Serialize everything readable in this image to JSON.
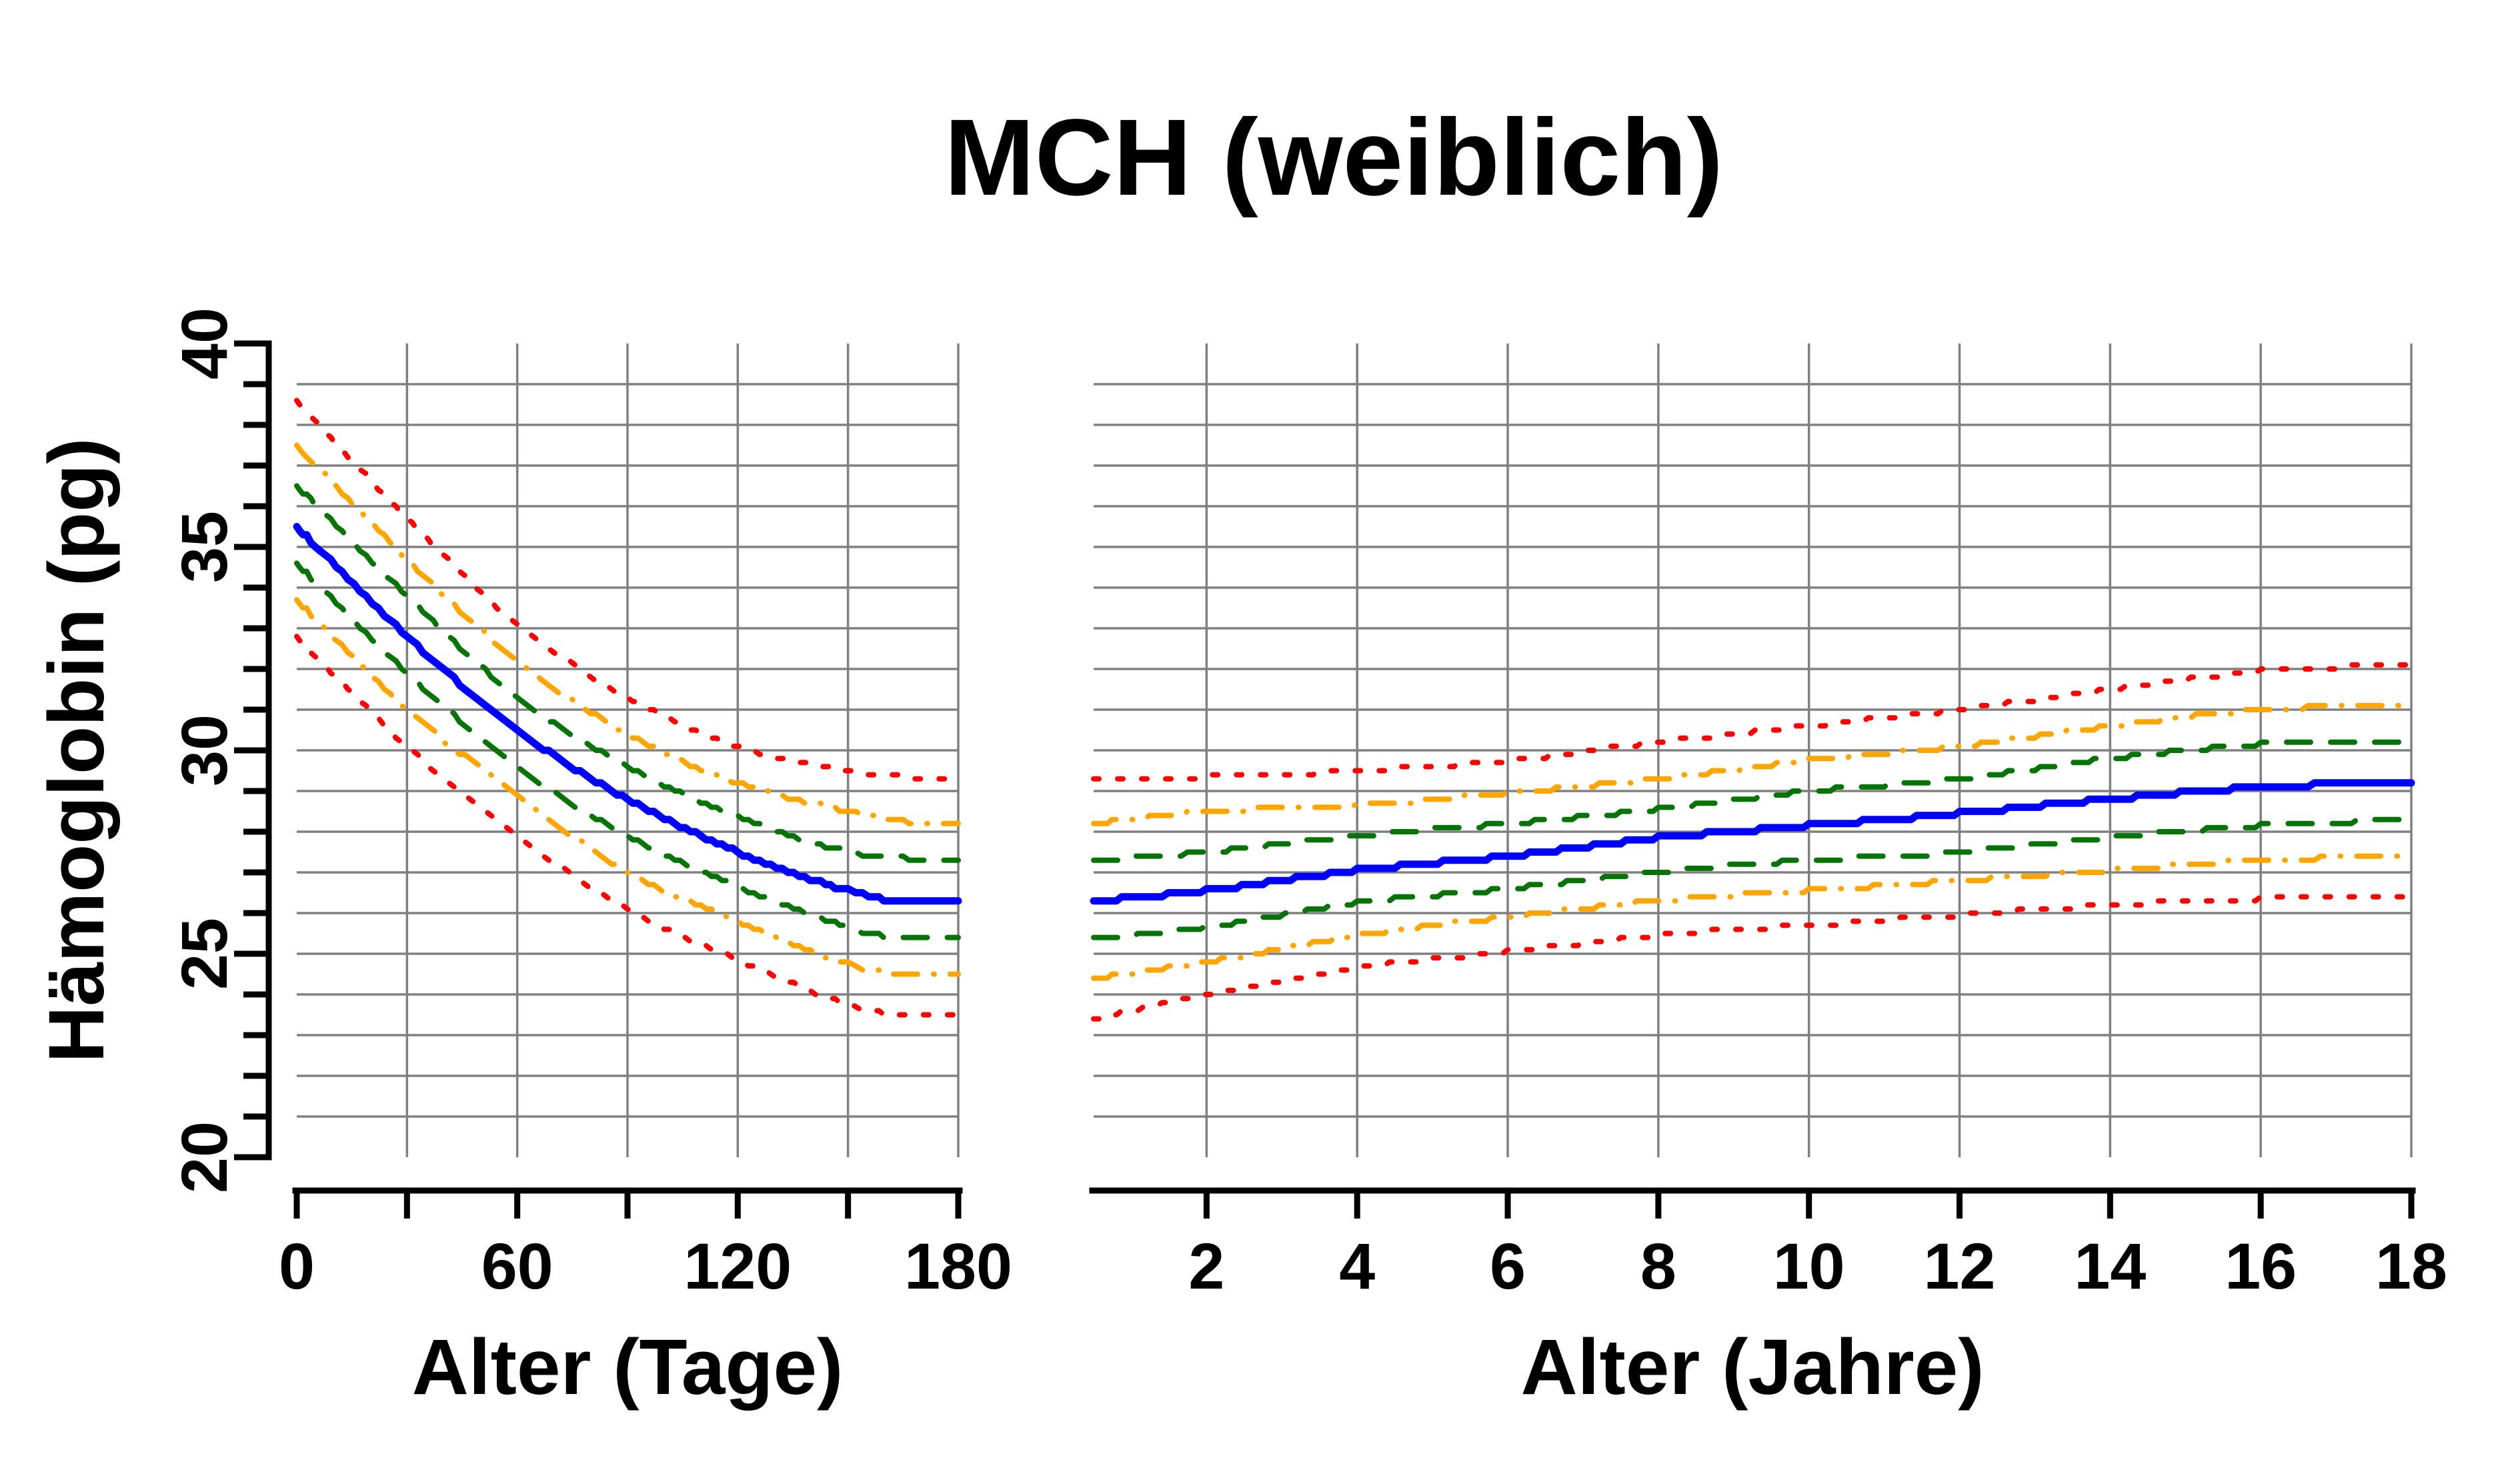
{
  "title": "MCH (weiblich)",
  "chart_data": {
    "type": "line",
    "title": "MCH (weiblich)",
    "ylabel": "Hämoglobin (pg)",
    "ylim": [
      20,
      40
    ],
    "yticks_labeled": [
      20,
      25,
      30,
      35,
      40
    ],
    "yticks_minor": [
      21,
      22,
      23,
      24,
      26,
      27,
      28,
      29,
      31,
      32,
      33,
      34,
      36,
      37,
      38,
      39
    ],
    "ygridlines": [
      21,
      22,
      23,
      24,
      25,
      26,
      27,
      28,
      29,
      30,
      31,
      32,
      33,
      34,
      35,
      36,
      37,
      38,
      39
    ],
    "grid_on": true,
    "legend": "none",
    "colors": {
      "grid": "#808080",
      "axis": "#000000",
      "red": "#ff0000",
      "orange": "#ffa500",
      "green": "#067306",
      "blue": "#0000ff"
    },
    "series_styles": [
      {
        "id": "upper-red",
        "color": "#ff0000",
        "line_style": "dotted",
        "width": 8
      },
      {
        "id": "upper-orange",
        "color": "#ffa500",
        "line_style": "dashdot",
        "width": 8
      },
      {
        "id": "upper-green",
        "color": "#067306",
        "line_style": "dashed",
        "width": 8
      },
      {
        "id": "median-blue",
        "color": "#0000ff",
        "line_style": "solid",
        "width": 11
      },
      {
        "id": "lower-green",
        "color": "#067306",
        "line_style": "dashed",
        "width": 8
      },
      {
        "id": "lower-orange",
        "color": "#ffa500",
        "line_style": "dashdot",
        "width": 8
      },
      {
        "id": "lower-red",
        "color": "#ff0000",
        "line_style": "dotted",
        "width": 8
      }
    ],
    "panels": [
      {
        "xlabel": "Alter (Tage)",
        "xlim": [
          0,
          180
        ],
        "xticks": [
          0,
          30,
          60,
          90,
          120,
          150,
          180
        ],
        "xticks_labeled": [
          0,
          60,
          120,
          180
        ],
        "xgridlines": [
          30,
          60,
          90,
          120,
          150,
          180
        ],
        "x": [
          0,
          30,
          60,
          90,
          120,
          150,
          165,
          180
        ],
        "series": {
          "upper-red": [
            38.6,
            35.7,
            33.1,
            31.3,
            30.1,
            29.5,
            29.35,
            29.3
          ],
          "upper-orange": [
            37.5,
            34.7,
            32.2,
            30.4,
            29.2,
            28.5,
            28.25,
            28.2
          ],
          "upper-green": [
            36.5,
            33.8,
            31.3,
            29.6,
            28.35,
            27.5,
            27.35,
            27.3
          ],
          "median-blue": [
            35.5,
            32.8,
            30.5,
            28.8,
            27.5,
            26.55,
            26.3,
            26.3
          ],
          "lower-green": [
            34.6,
            31.9,
            29.6,
            27.9,
            26.65,
            25.65,
            25.4,
            25.35
          ],
          "lower-orange": [
            33.7,
            31.0,
            28.9,
            27.0,
            25.8,
            24.75,
            24.5,
            24.5
          ],
          "lower-red": [
            32.8,
            30.1,
            27.9,
            26.1,
            24.85,
            23.75,
            23.5,
            23.5
          ]
        }
      },
      {
        "xlabel": "Alter (Jahre)",
        "xlim": [
          0.5,
          18
        ],
        "xticks": [
          2,
          4,
          6,
          8,
          10,
          12,
          14,
          16,
          18
        ],
        "xticks_labeled": [
          2,
          4,
          6,
          8,
          10,
          12,
          14,
          16,
          18
        ],
        "xgridlines": [
          2,
          4,
          6,
          8,
          10,
          12,
          14,
          16,
          18
        ],
        "x": [
          0.5,
          2,
          4,
          6,
          8,
          10,
          12,
          14,
          16,
          18
        ],
        "series": {
          "upper-red": [
            29.3,
            29.35,
            29.5,
            29.75,
            30.2,
            30.6,
            31.0,
            31.5,
            31.95,
            32.1
          ],
          "upper-orange": [
            28.2,
            28.5,
            28.65,
            28.95,
            29.3,
            29.75,
            30.1,
            30.6,
            31.0,
            31.1
          ],
          "upper-green": [
            27.3,
            27.5,
            27.9,
            28.2,
            28.55,
            29.0,
            29.3,
            29.8,
            30.15,
            30.25
          ],
          "median-blue": [
            26.3,
            26.55,
            27.05,
            27.4,
            27.85,
            28.15,
            28.45,
            28.8,
            29.1,
            29.2
          ],
          "lower-green": [
            25.35,
            25.65,
            26.25,
            26.6,
            27.0,
            27.3,
            27.5,
            27.85,
            28.15,
            28.3
          ],
          "lower-orange": [
            24.4,
            24.8,
            25.45,
            25.9,
            26.3,
            26.55,
            26.8,
            27.05,
            27.3,
            27.4
          ],
          "lower-red": [
            23.4,
            24.0,
            24.65,
            25.05,
            25.45,
            25.7,
            25.95,
            26.2,
            26.35,
            26.4
          ]
        }
      }
    ]
  }
}
